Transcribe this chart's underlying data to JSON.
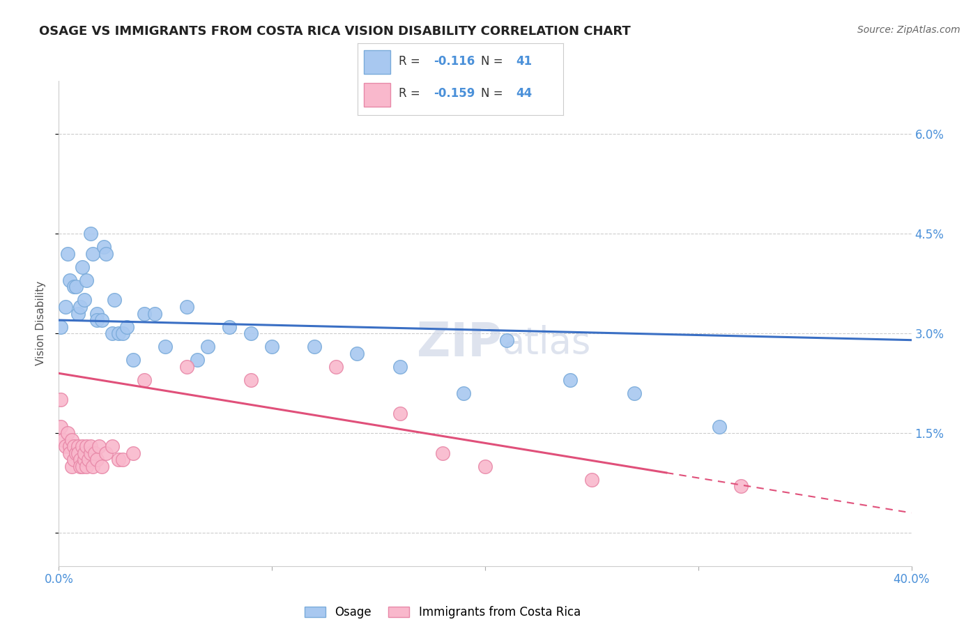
{
  "title": "OSAGE VS IMMIGRANTS FROM COSTA RICA VISION DISABILITY CORRELATION CHART",
  "source": "Source: ZipAtlas.com",
  "ylabel": "Vision Disability",
  "xlim": [
    0.0,
    0.4
  ],
  "ylim": [
    -0.005,
    0.068
  ],
  "yticks": [
    0.0,
    0.015,
    0.03,
    0.045,
    0.06
  ],
  "ytick_labels": [
    "",
    "1.5%",
    "3.0%",
    "4.5%",
    "6.0%"
  ],
  "xticks": [
    0.0,
    0.1,
    0.2,
    0.3,
    0.4
  ],
  "xtick_labels": [
    "0.0%",
    "",
    "",
    "",
    "40.0%"
  ],
  "grid_color": "#cccccc",
  "background_color": "#ffffff",
  "osage_color": "#a8c8f0",
  "osage_edge_color": "#7aabda",
  "costa_rica_color": "#f9b8cc",
  "costa_rica_edge_color": "#e888a8",
  "trend_osage_color": "#3a6fc4",
  "trend_costa_rica_color": "#e0507a",
  "legend_r_osage": "-0.116",
  "legend_n_osage": "41",
  "legend_r_costa_rica": "-0.159",
  "legend_n_costa_rica": "44",
  "osage_label": "Osage",
  "costa_rica_label": "Immigrants from Costa Rica",
  "watermark": "ZIPatlas",
  "osage_x": [
    0.001,
    0.003,
    0.004,
    0.005,
    0.007,
    0.008,
    0.009,
    0.01,
    0.011,
    0.012,
    0.013,
    0.015,
    0.016,
    0.018,
    0.018,
    0.02,
    0.021,
    0.022,
    0.025,
    0.026,
    0.028,
    0.03,
    0.032,
    0.035,
    0.04,
    0.045,
    0.05,
    0.06,
    0.065,
    0.07,
    0.08,
    0.09,
    0.1,
    0.12,
    0.14,
    0.16,
    0.19,
    0.21,
    0.24,
    0.27,
    0.31
  ],
  "osage_y": [
    0.031,
    0.034,
    0.042,
    0.038,
    0.037,
    0.037,
    0.033,
    0.034,
    0.04,
    0.035,
    0.038,
    0.045,
    0.042,
    0.033,
    0.032,
    0.032,
    0.043,
    0.042,
    0.03,
    0.035,
    0.03,
    0.03,
    0.031,
    0.026,
    0.033,
    0.033,
    0.028,
    0.034,
    0.026,
    0.028,
    0.031,
    0.03,
    0.028,
    0.028,
    0.027,
    0.025,
    0.021,
    0.029,
    0.023,
    0.021,
    0.016
  ],
  "costa_rica_x": [
    0.001,
    0.001,
    0.002,
    0.003,
    0.004,
    0.005,
    0.005,
    0.006,
    0.006,
    0.007,
    0.007,
    0.008,
    0.009,
    0.009,
    0.01,
    0.01,
    0.011,
    0.011,
    0.012,
    0.012,
    0.013,
    0.013,
    0.014,
    0.015,
    0.015,
    0.016,
    0.017,
    0.018,
    0.019,
    0.02,
    0.022,
    0.025,
    0.028,
    0.03,
    0.035,
    0.04,
    0.06,
    0.09,
    0.13,
    0.16,
    0.18,
    0.2,
    0.25,
    0.32
  ],
  "costa_rica_y": [
    0.02,
    0.016,
    0.014,
    0.013,
    0.015,
    0.013,
    0.012,
    0.014,
    0.01,
    0.013,
    0.011,
    0.012,
    0.013,
    0.012,
    0.011,
    0.01,
    0.013,
    0.01,
    0.011,
    0.012,
    0.01,
    0.013,
    0.011,
    0.012,
    0.013,
    0.01,
    0.012,
    0.011,
    0.013,
    0.01,
    0.012,
    0.013,
    0.011,
    0.011,
    0.012,
    0.023,
    0.025,
    0.023,
    0.025,
    0.018,
    0.012,
    0.01,
    0.008,
    0.007
  ],
  "trend_osage_x0": 0.0,
  "trend_osage_y0": 0.032,
  "trend_osage_x1": 0.4,
  "trend_osage_y1": 0.029,
  "trend_cr_x0": 0.0,
  "trend_cr_y0": 0.024,
  "trend_cr_x1": 0.4,
  "trend_cr_y1": 0.003,
  "trend_cr_solid_end": 0.285
}
